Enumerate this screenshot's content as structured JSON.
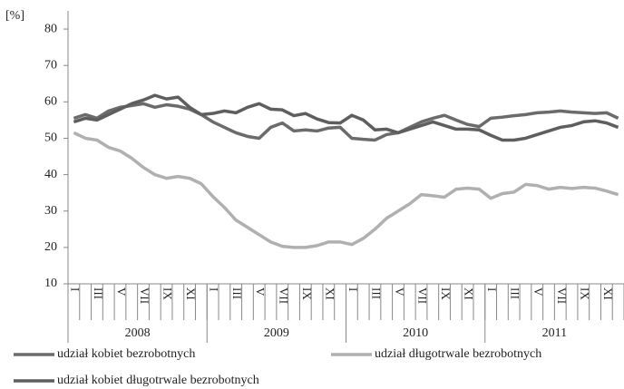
{
  "chart_data": {
    "type": "line",
    "y_label": "[%]",
    "categories": [
      "I",
      null,
      "III",
      null,
      "V",
      null,
      "VII",
      null,
      "IX",
      null,
      "XI",
      null,
      "I",
      null,
      "III",
      null,
      "V",
      null,
      "VII",
      null,
      "IX",
      null,
      "XI",
      null,
      "I",
      null,
      "III",
      null,
      "V",
      null,
      "VII",
      null,
      "IX",
      null,
      "XI",
      null,
      "I",
      null,
      "III",
      null,
      "V",
      null,
      "VII",
      null,
      "IX",
      null,
      "XI",
      null
    ],
    "groups": [
      "2008",
      "2009",
      "2010",
      "2011"
    ],
    "ylim": [
      10,
      85
    ],
    "yticks": [
      10,
      20,
      30,
      40,
      50,
      60,
      70,
      80
    ],
    "series": [
      {
        "name": "udział kobiet bezrobotnych",
        "color": "#6b6b6b",
        "values": [
          55.5,
          56.5,
          55.5,
          57.5,
          58.5,
          59,
          59.5,
          58.5,
          59.2,
          58.8,
          58,
          56.5,
          54.5,
          53,
          51.5,
          50.5,
          50,
          53,
          54.2,
          52,
          52.3,
          52,
          52.8,
          53,
          50,
          49.7,
          49.5,
          51,
          51.5,
          53,
          54.5,
          55.5,
          56.3,
          55,
          53.8,
          53.2,
          55.5,
          55.8,
          56.2,
          56.5,
          57,
          57.2,
          57.5,
          57.2,
          57,
          56.8,
          57,
          55.5
        ]
      },
      {
        "name": "udział długotrwale bezrobotnych",
        "color": "#b0b0b0",
        "values": [
          51.5,
          50,
          49.5,
          47.5,
          46.5,
          44.5,
          42,
          40,
          39,
          39.5,
          39,
          37.5,
          34,
          31,
          27.5,
          25.5,
          23.5,
          21.5,
          20.3,
          20,
          20,
          20.5,
          21.5,
          21.5,
          20.8,
          22.5,
          25,
          28,
          30,
          32,
          34.5,
          34.2,
          33.8,
          36,
          36.3,
          36,
          33.5,
          34.8,
          35.2,
          37.3,
          37,
          36,
          36.5,
          36.2,
          36.5,
          36.3,
          35.5,
          34.5
        ]
      },
      {
        "name": "udział kobiet długotrwale bezrobotnych",
        "color": "#5e5e5e",
        "values": [
          54.5,
          55.5,
          55,
          56.5,
          58,
          59.5,
          60.5,
          61.8,
          60.8,
          61.3,
          58.5,
          56.5,
          56.8,
          57.5,
          57,
          58.5,
          59.5,
          58,
          57.8,
          56.2,
          56.8,
          55.3,
          54.3,
          54.2,
          56.3,
          55,
          52.3,
          52.5,
          51.5,
          52.5,
          53.5,
          54.5,
          53.5,
          52.5,
          52.5,
          52.3,
          50.8,
          49.5,
          49.5,
          50,
          51,
          52,
          53,
          53.5,
          54.5,
          54.8,
          54.2,
          53
        ]
      }
    ]
  }
}
